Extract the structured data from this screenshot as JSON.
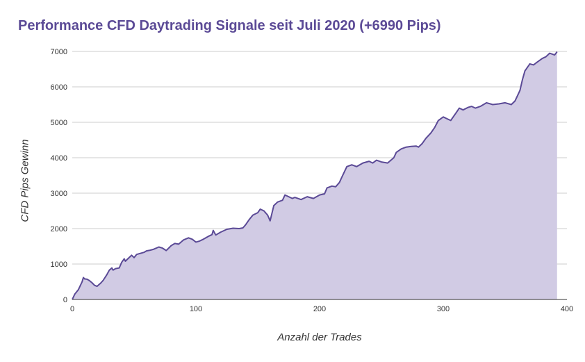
{
  "chart_data": {
    "type": "area",
    "title": "Performance CFD Daytrading Signale seit Juli 2020 (+6990 Pips)",
    "xlabel": "Anzahl der Trades",
    "ylabel": "CFD Pips  Gewinn",
    "xlim": [
      0,
      400
    ],
    "ylim": [
      0,
      7000
    ],
    "x_ticks": [
      "0",
      "100",
      "200",
      "300",
      "400"
    ],
    "y_ticks": [
      "0",
      "1000",
      "2000",
      "3000",
      "4000",
      "5000",
      "6000",
      "7000"
    ],
    "grid": "horizontal",
    "legend": "none",
    "colors": {
      "line": "#5b4a96",
      "fill": "#d1cbe4",
      "title": "#5b4a96",
      "grid": "#cccccc"
    },
    "series": [
      {
        "x": [
          0,
          2,
          5,
          8,
          9,
          10,
          12,
          14,
          16,
          18,
          20,
          23,
          25,
          28,
          30,
          32,
          33,
          35,
          38,
          40,
          42,
          43,
          45,
          48,
          50,
          52,
          55,
          58,
          60,
          63,
          66,
          70,
          73,
          76,
          80,
          83,
          86,
          90,
          94,
          97,
          100,
          103,
          106,
          110,
          113,
          114,
          116,
          120,
          125,
          130,
          135,
          138,
          140,
          143,
          146,
          150,
          152,
          155,
          158,
          160,
          163,
          166,
          170,
          172,
          175,
          178,
          180,
          185,
          190,
          195,
          200,
          204,
          206,
          210,
          213,
          216,
          218,
          220,
          222,
          226,
          230,
          235,
          240,
          243,
          246,
          250,
          255,
          260,
          262,
          266,
          270,
          274,
          278,
          280,
          283,
          286,
          290,
          293,
          296,
          300,
          303,
          306,
          310,
          313,
          316,
          320,
          323,
          326,
          330,
          335,
          340,
          345,
          350,
          355,
          358,
          360,
          362,
          364,
          366,
          370,
          373,
          376,
          380,
          383,
          386,
          390,
          392
        ],
        "y": [
          0,
          150,
          280,
          500,
          620,
          580,
          570,
          530,
          470,
          400,
          370,
          460,
          540,
          700,
          830,
          890,
          830,
          870,
          890,
          1050,
          1150,
          1080,
          1150,
          1250,
          1180,
          1270,
          1300,
          1330,
          1370,
          1390,
          1420,
          1480,
          1450,
          1380,
          1520,
          1580,
          1560,
          1680,
          1740,
          1700,
          1620,
          1650,
          1700,
          1780,
          1830,
          1950,
          1820,
          1900,
          1980,
          2010,
          2000,
          2020,
          2100,
          2250,
          2380,
          2450,
          2550,
          2500,
          2380,
          2220,
          2650,
          2750,
          2800,
          2950,
          2900,
          2850,
          2880,
          2820,
          2900,
          2850,
          2950,
          2980,
          3150,
          3200,
          3180,
          3300,
          3450,
          3600,
          3750,
          3800,
          3750,
          3850,
          3900,
          3850,
          3930,
          3880,
          3850,
          4000,
          4150,
          4250,
          4300,
          4320,
          4330,
          4300,
          4400,
          4550,
          4700,
          4850,
          5050,
          5150,
          5100,
          5050,
          5250,
          5400,
          5350,
          5420,
          5450,
          5400,
          5450,
          5550,
          5500,
          5520,
          5550,
          5500,
          5600,
          5750,
          5900,
          6200,
          6450,
          6650,
          6620,
          6700,
          6800,
          6850,
          6950,
          6900,
          6990
        ]
      }
    ]
  }
}
